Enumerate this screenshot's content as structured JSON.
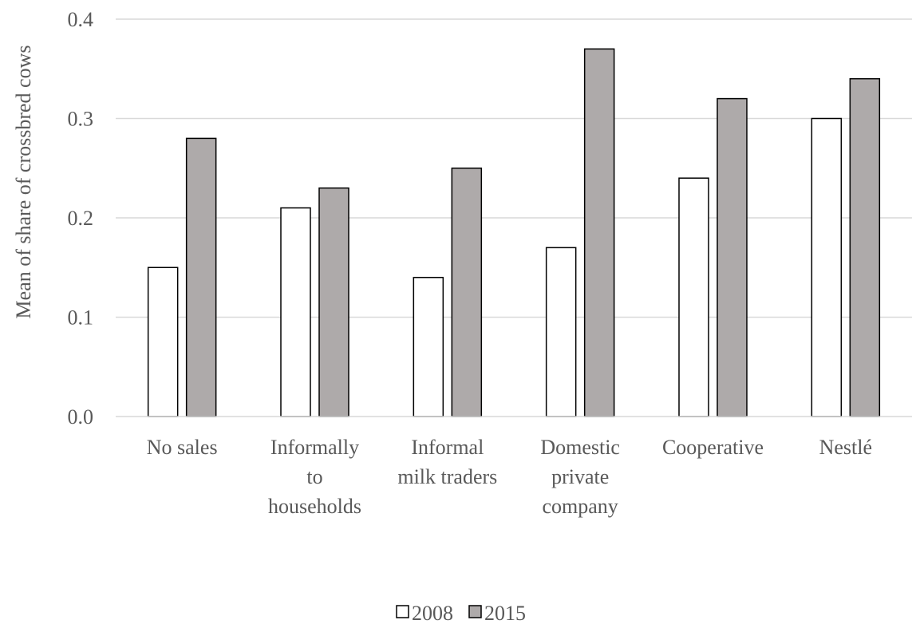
{
  "chart_data": {
    "type": "bar",
    "title": "",
    "xlabel": "",
    "ylabel": "Mean of share of crossbred cows",
    "categories": [
      [
        "No sales"
      ],
      [
        "Informally",
        "to",
        "households"
      ],
      [
        "Informal",
        "milk traders"
      ],
      [
        "Domestic",
        "private",
        "company"
      ],
      [
        "Cooperative"
      ],
      [
        "Nestlé"
      ]
    ],
    "series": [
      {
        "name": "2008",
        "values": [
          0.15,
          0.21,
          0.14,
          0.17,
          0.24,
          0.3
        ],
        "color": "#ffffff"
      },
      {
        "name": "2015",
        "values": [
          0.28,
          0.23,
          0.25,
          0.37,
          0.32,
          0.34
        ],
        "color": "#aeaaaa"
      }
    ],
    "yticks": [
      "0.0",
      "0.1",
      "0.2",
      "0.3",
      "0.4"
    ],
    "ylim": [
      0,
      0.4
    ],
    "grid": true,
    "legend_position": "bottom"
  }
}
